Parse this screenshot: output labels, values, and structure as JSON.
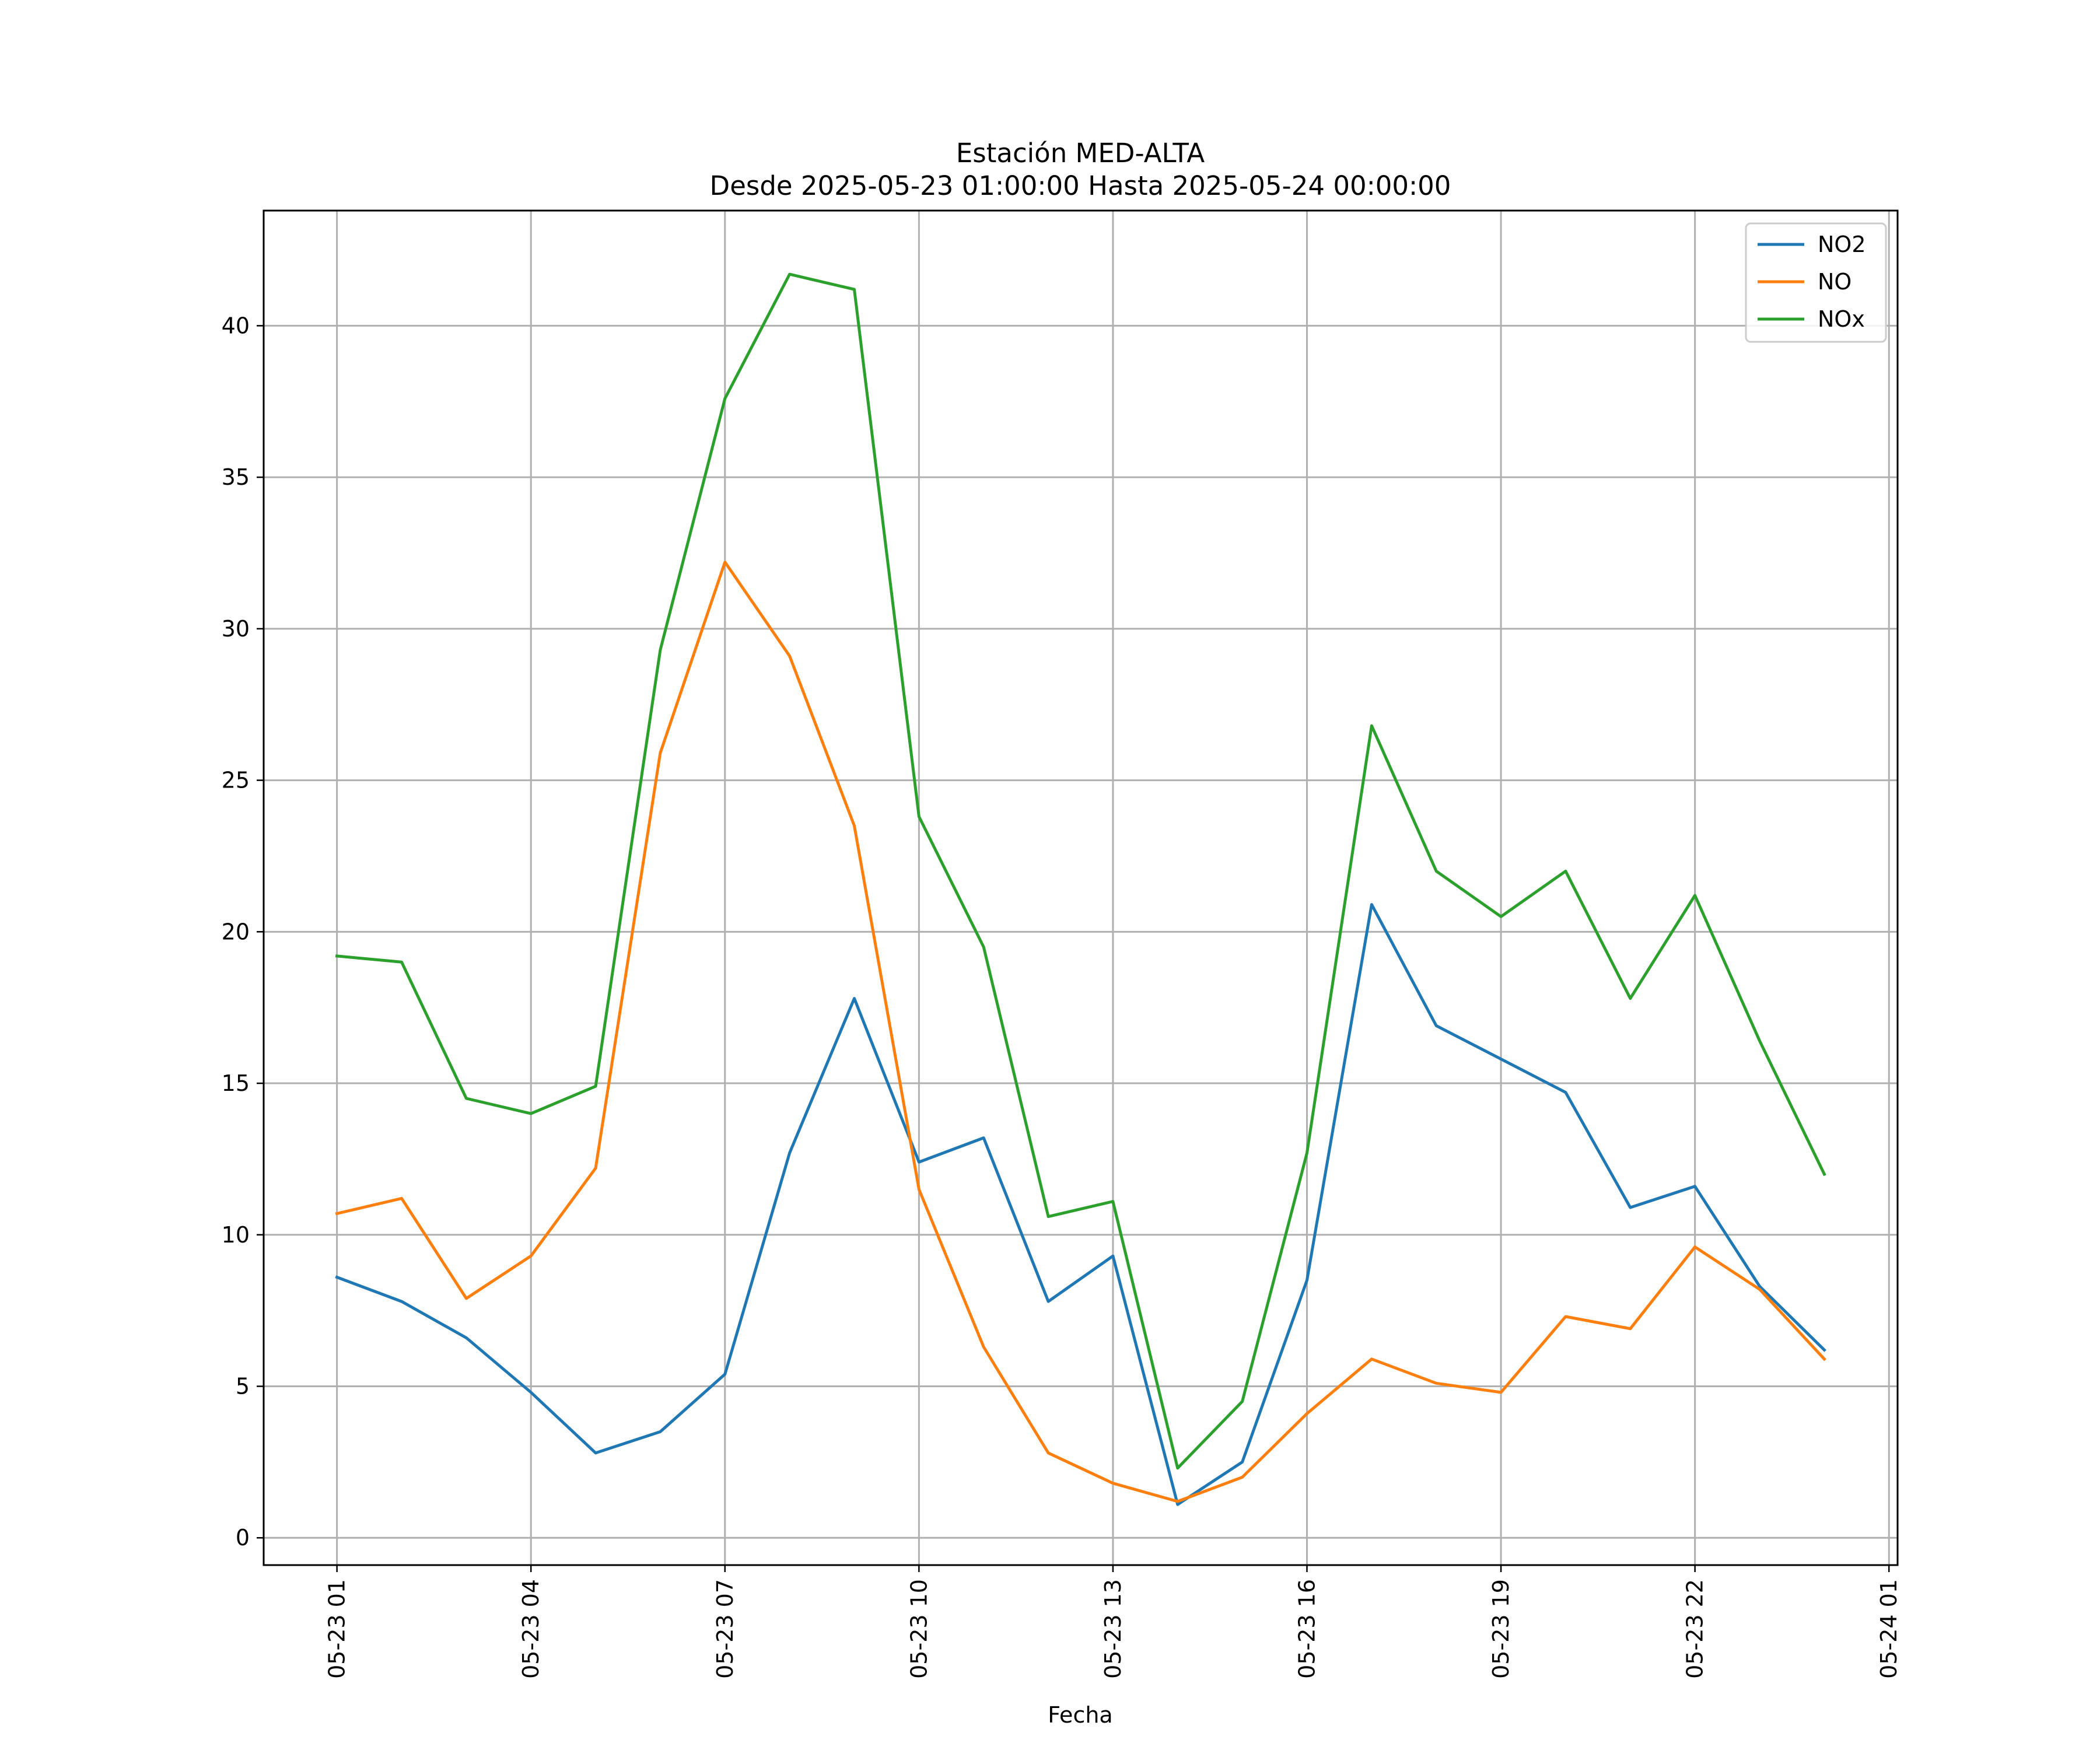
{
  "chart_data": {
    "type": "line",
    "title": "Estación MED-ALTA",
    "subtitle": "Desde 2025-05-23 01:00:00 Hasta 2025-05-24 00:00:00",
    "xlabel": "Fecha",
    "ylabel": "",
    "x": [
      "2025-05-23 01:00",
      "2025-05-23 02:00",
      "2025-05-23 03:00",
      "2025-05-23 04:00",
      "2025-05-23 05:00",
      "2025-05-23 06:00",
      "2025-05-23 07:00",
      "2025-05-23 08:00",
      "2025-05-23 09:00",
      "2025-05-23 10:00",
      "2025-05-23 11:00",
      "2025-05-23 12:00",
      "2025-05-23 13:00",
      "2025-05-23 14:00",
      "2025-05-23 15:00",
      "2025-05-23 16:00",
      "2025-05-23 17:00",
      "2025-05-23 18:00",
      "2025-05-23 19:00",
      "2025-05-23 20:00",
      "2025-05-23 21:00",
      "2025-05-23 22:00",
      "2025-05-23 23:00",
      "2025-05-24 00:00"
    ],
    "x_ticks": [
      "05-23 01",
      "05-23 04",
      "05-23 07",
      "05-23 10",
      "05-23 13",
      "05-23 16",
      "05-23 19",
      "05-23 22",
      "05-24 01"
    ],
    "xlim": [
      "2025-05-22 23:52",
      "2025-05-24 01:08"
    ],
    "y_ticks": [
      0,
      5,
      10,
      15,
      20,
      25,
      30,
      35,
      40
    ],
    "ylim": [
      -0.9,
      43.8
    ],
    "grid": true,
    "legend_position": "top-right",
    "series": [
      {
        "name": "NO2",
        "color": "#1f77b4",
        "values": [
          8.6,
          7.8,
          6.6,
          4.8,
          2.8,
          3.5,
          5.4,
          12.7,
          17.8,
          12.4,
          13.2,
          7.8,
          9.3,
          1.1,
          2.5,
          8.5,
          20.9,
          16.9,
          15.8,
          14.7,
          10.9,
          11.6,
          8.3,
          6.2
        ]
      },
      {
        "name": "NO",
        "color": "#ff7f0e",
        "values": [
          10.7,
          11.2,
          7.9,
          9.3,
          12.2,
          25.9,
          32.2,
          29.1,
          23.5,
          11.5,
          6.3,
          2.8,
          1.8,
          1.2,
          2.0,
          4.1,
          5.9,
          5.1,
          4.8,
          7.3,
          6.9,
          9.6,
          8.2,
          5.9
        ]
      },
      {
        "name": "NOx",
        "color": "#2ca02c",
        "values": [
          19.2,
          19.0,
          14.5,
          14.0,
          14.9,
          29.3,
          37.6,
          41.7,
          41.2,
          23.8,
          19.5,
          10.6,
          11.1,
          2.3,
          4.5,
          12.7,
          26.8,
          22.0,
          20.5,
          22.0,
          17.8,
          21.2,
          16.4,
          12.0
        ]
      }
    ]
  }
}
